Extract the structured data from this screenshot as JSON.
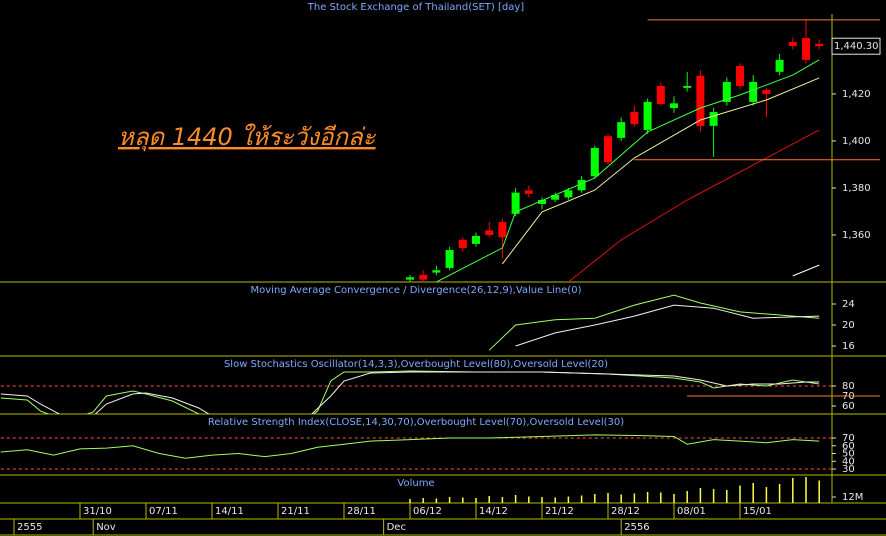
{
  "chart_data": [
    {
      "type": "candlestick",
      "title": "The Stock Exchange of Thailand(SET) [day]",
      "annotation": "หลุด 1440 ให้ระวังอีกล่ะ",
      "last_price": {
        "value": 1440.3,
        "label": "1,440.30"
      },
      "xlim": [
        -1,
        62
      ],
      "ylim": [
        1340,
        1454
      ],
      "yticks": [
        {
          "value": 1360,
          "label": "1,360"
        },
        {
          "value": 1380,
          "label": "1,380"
        },
        {
          "value": 1400,
          "label": "1,400"
        },
        {
          "value": 1420,
          "label": "1,420"
        }
      ],
      "up_color": "#00ff00",
      "down_color": "#ff0000",
      "x": [
        30,
        31,
        32,
        33,
        34,
        35,
        36,
        37,
        38,
        39,
        40,
        41,
        42,
        43,
        44,
        45,
        46,
        47,
        48,
        49,
        50,
        51,
        52,
        53,
        54,
        55,
        56,
        57,
        58,
        59,
        60,
        61
      ],
      "open": [
        1341,
        1343,
        1344,
        1346,
        1358,
        1356.2,
        1362,
        1365.5,
        1369,
        1379,
        1373.2,
        1375,
        1376,
        1379,
        1385,
        1402,
        1401.3,
        1412.3,
        1404.7,
        1423.4,
        1414,
        1422.6,
        1427.7,
        1406.4,
        1416.6,
        1431.9,
        1416.6,
        1421.7,
        1429.4,
        1442.1,
        1443.8,
        1441.3
      ],
      "high": [
        1343,
        1345,
        1347,
        1355,
        1359,
        1361,
        1365.5,
        1367,
        1380,
        1381,
        1376,
        1378,
        1380,
        1385,
        1398,
        1403,
        1410,
        1415,
        1418,
        1425,
        1419,
        1429.4,
        1430,
        1414,
        1427,
        1433,
        1428,
        1422.5,
        1437,
        1444,
        1451.5,
        1443
      ],
      "low": [
        1340,
        1340,
        1343,
        1345,
        1353,
        1355,
        1359,
        1350,
        1368,
        1376,
        1371,
        1374,
        1375,
        1378,
        1384,
        1390,
        1400,
        1406,
        1403,
        1415,
        1412,
        1421,
        1404,
        1393.2,
        1415,
        1422,
        1415,
        1410,
        1428,
        1439,
        1433,
        1439
      ],
      "close": [
        1342,
        1341,
        1345,
        1353.6,
        1354.5,
        1359.6,
        1360,
        1359,
        1378,
        1377.5,
        1374.9,
        1377,
        1379,
        1383.4,
        1397,
        1391,
        1408,
        1407.2,
        1416.6,
        1415.7,
        1416,
        1423.4,
        1406.4,
        1412.3,
        1425.1,
        1423.4,
        1425.1,
        1420,
        1434.5,
        1440.4,
        1434.5,
        1440.3
      ],
      "overlays": [
        {
          "color": "#40ff40",
          "x": [
            32,
            37,
            38,
            44,
            48,
            52,
            55,
            59,
            61
          ],
          "values": [
            1340,
            1354.5,
            1369.8,
            1384.3,
            1403.8,
            1414,
            1419.6,
            1428,
            1434.5
          ]
        },
        {
          "color": "#f0f0a0",
          "x": [
            37,
            40,
            44,
            47,
            52,
            57,
            61
          ],
          "values": [
            1347.7,
            1369.8,
            1379.1,
            1392.8,
            1408.9,
            1417.4,
            1426.8
          ]
        },
        {
          "color": "#e01010",
          "x": [
            42,
            46,
            51,
            55,
            61
          ],
          "values": [
            1340,
            1357.9,
            1374.9,
            1386.8,
            1404.7
          ]
        },
        {
          "color": "#ffffff",
          "x": [
            59,
            61
          ],
          "values": [
            1342.6,
            1347.2
          ]
        }
      ],
      "hlines": [
        {
          "value": 1451.5,
          "from": 48,
          "color": "#ff7830"
        },
        {
          "value": 1392,
          "from": 47,
          "color": "#ff7830"
        }
      ]
    },
    {
      "type": "line",
      "title": "Moving Average Convergence / Divergence(26,12,9),Value Line(0)",
      "xlim": [
        -1,
        62
      ],
      "ylim": [
        14.1,
        28
      ],
      "yticks": [
        16,
        20,
        24
      ],
      "series": [
        {
          "color": "#a0ff60",
          "x": [
            36,
            38,
            41,
            44,
            47,
            50,
            52,
            55,
            58,
            61
          ],
          "values": [
            15.2,
            20,
            21,
            21.3,
            23.8,
            25.7,
            24.2,
            22.5,
            21.9,
            21.3
          ]
        },
        {
          "color": "#f0f0f0",
          "x": [
            38,
            41,
            44,
            47,
            50,
            53,
            56,
            61
          ],
          "values": [
            16,
            18.5,
            20,
            21.7,
            23.8,
            23.2,
            21.3,
            21.7
          ]
        }
      ]
    },
    {
      "type": "line",
      "title": "Slow Stochastics Oscillator(14,3,3),Overbought Level(80),Oversold Level(20)",
      "xlim": [
        -1,
        62
      ],
      "ylim": [
        52,
        109
      ],
      "yticks": [
        60,
        70,
        80
      ],
      "levels": [
        {
          "value": 80,
          "color": "#ff5050"
        }
      ],
      "hlines": [
        {
          "value": 70,
          "from": 51,
          "color": "#ff7830"
        }
      ],
      "series": [
        {
          "color": "#a0ff60",
          "x": [
            -1,
            1,
            2,
            4,
            6,
            7,
            9,
            10,
            12,
            14,
            15,
            22,
            23,
            24,
            25,
            27,
            30,
            35,
            40,
            45,
            50,
            52,
            53,
            55,
            57,
            59,
            61
          ],
          "values": [
            68,
            66,
            55,
            45,
            54,
            70,
            75,
            72,
            65,
            52,
            45,
            45,
            55,
            85,
            94,
            94,
            95,
            94,
            94,
            92,
            88,
            84,
            78,
            82,
            80,
            86,
            82
          ]
        },
        {
          "color": "#f0f0f0",
          "x": [
            -1,
            1,
            2,
            4,
            6,
            7,
            9,
            10,
            12,
            14,
            15,
            22,
            24,
            25,
            27,
            30,
            40,
            50,
            52,
            54,
            56,
            58,
            60,
            61
          ],
          "values": [
            72,
            70,
            62,
            48,
            50,
            62,
            72,
            73,
            68,
            58,
            50,
            45,
            70,
            85,
            93,
            94,
            94,
            90,
            86,
            80,
            82,
            82,
            84,
            84
          ]
        }
      ]
    },
    {
      "type": "line",
      "title": "Relative Strength Index(CLOSE,14,30,70),Overbought Level(70),Oversold Level(30)",
      "xlim": [
        -1,
        62
      ],
      "ylim": [
        22.3,
        99.7
      ],
      "yticks": [
        30,
        40,
        50,
        60,
        70
      ],
      "levels": [
        {
          "value": 70,
          "color": "#ff5050"
        },
        {
          "value": 30,
          "color": "#ff5050"
        }
      ],
      "series": [
        {
          "color": "#a0ff60",
          "x": [
            -1,
            1,
            3,
            5,
            7,
            9,
            11,
            13,
            15,
            17,
            19,
            21,
            23,
            25,
            27,
            30,
            33,
            36,
            40,
            44,
            48,
            50,
            51,
            53,
            55,
            57,
            59,
            61
          ],
          "values": [
            52,
            55,
            48,
            56,
            57,
            60,
            50,
            44,
            48,
            50,
            46,
            50,
            58,
            62,
            66,
            68,
            70,
            70,
            72,
            74,
            73,
            72,
            62,
            68,
            66,
            64,
            68,
            66
          ]
        }
      ]
    },
    {
      "type": "bar",
      "title": "Volume",
      "color": "#ffff40",
      "xlim": [
        -1,
        62
      ],
      "ylim": [
        0,
        54000000
      ],
      "yticks": [
        {
          "value": 12000000,
          "label": "12M"
        }
      ],
      "x": [
        30,
        31,
        32,
        33,
        34,
        35,
        36,
        37,
        38,
        39,
        40,
        41,
        42,
        43,
        44,
        45,
        46,
        47,
        48,
        49,
        50,
        51,
        52,
        53,
        54,
        55,
        56,
        57,
        58,
        59,
        60,
        61
      ],
      "values": [
        8000000,
        10000000,
        9000000,
        12000000,
        11000000,
        10000000,
        14000000,
        12000000,
        16000000,
        13000000,
        12000000,
        11000000,
        13000000,
        15000000,
        18000000,
        20000000,
        17000000,
        19000000,
        22000000,
        21000000,
        18000000,
        24000000,
        30000000,
        28000000,
        26000000,
        35000000,
        40000000,
        32000000,
        38000000,
        50000000,
        52000000,
        45000000
      ]
    }
  ],
  "x_axis": {
    "xlim": [
      -1,
      62
    ],
    "ticks": [
      {
        "value": 5,
        "label": "31/10"
      },
      {
        "value": 10,
        "label": "07/11"
      },
      {
        "value": 15,
        "label": "14/11"
      },
      {
        "value": 20,
        "label": "21/11"
      },
      {
        "value": 25,
        "label": "28/11"
      },
      {
        "value": 30,
        "label": "06/12"
      },
      {
        "value": 35,
        "label": "14/12"
      },
      {
        "value": 40,
        "label": "21/12"
      },
      {
        "value": 45,
        "label": "28/12"
      },
      {
        "value": 50,
        "label": "08/01"
      },
      {
        "value": 55,
        "label": "15/01"
      }
    ],
    "periods": [
      {
        "value": 0,
        "label": "2555"
      },
      {
        "value": 6,
        "label": "Nov"
      },
      {
        "value": 28,
        "label": "Dec"
      },
      {
        "value": 46,
        "label": "2556"
      }
    ]
  }
}
